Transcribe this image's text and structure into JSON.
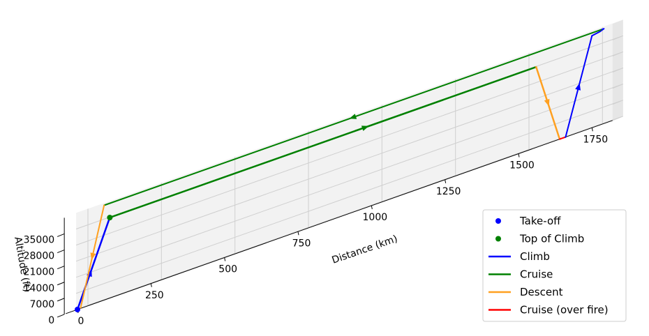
{
  "chart_data": {
    "type": "line",
    "projection": "3d",
    "title": "",
    "xlabel": "Distance (km)",
    "ylabel": "",
    "zlabel": "Altitude (ft)",
    "xticks": [
      {
        "value": 0,
        "label": "0"
      },
      {
        "value": 250,
        "label": "250"
      },
      {
        "value": 500,
        "label": "500"
      },
      {
        "value": 750,
        "label": "750"
      },
      {
        "value": 1000,
        "label": "1000"
      },
      {
        "value": 1250,
        "label": "1250"
      },
      {
        "value": 1500,
        "label": "1500"
      },
      {
        "value": 1750,
        "label": "1750"
      }
    ],
    "zticks": [
      {
        "value": 0,
        "label": "0"
      },
      {
        "value": 7000,
        "label": "7000"
      },
      {
        "value": 14000,
        "label": "14000"
      },
      {
        "value": 21000,
        "label": "21000"
      },
      {
        "value": 28000,
        "label": "28000"
      },
      {
        "value": 35000,
        "label": "35000"
      }
    ],
    "xlim": [
      -40,
      1820
    ],
    "zlim": [
      0,
      42000
    ],
    "grid": true,
    "legend_position": "bottom-right",
    "legend": [
      {
        "label": "Take-off",
        "kind": "marker",
        "color": "#0000ff"
      },
      {
        "label": "Top of Climb",
        "kind": "marker",
        "color": "#008000"
      },
      {
        "label": "Climb",
        "kind": "line",
        "color": "#0000ff"
      },
      {
        "label": "Cruise",
        "kind": "line",
        "color": "#008000"
      },
      {
        "label": "Descent",
        "kind": "line",
        "color": "#ffa020"
      },
      {
        "label": "Cruise (over fire)",
        "kind": "line",
        "color": "#ff0000"
      }
    ],
    "segments": [
      {
        "series": "Climb",
        "color": "#0000ff",
        "width": 2.5,
        "points": [
          [
            0,
            0,
            0
          ],
          [
            110,
            0,
            35000
          ]
        ],
        "arrow_at": 0.4
      },
      {
        "series": "Cruise",
        "color": "#008000",
        "width": 2.5,
        "points": [
          [
            110,
            0,
            35000
          ],
          [
            1560,
            0,
            35000
          ]
        ],
        "arrow_at": 0.6
      },
      {
        "series": "Descent",
        "color": "#ffa020",
        "width": 2.5,
        "points": [
          [
            1560,
            0,
            35000
          ],
          [
            1640,
            0,
            0
          ]
        ],
        "arrow_at": 0.5
      },
      {
        "series": "Cruise (over fire)",
        "color": "#ff0000",
        "width": 2,
        "points": [
          [
            1640,
            0,
            0
          ],
          [
            1660,
            0,
            0
          ]
        ]
      },
      {
        "series": "Climb",
        "color": "#0000ff",
        "width": 2,
        "points": [
          [
            1660,
            0,
            0
          ],
          [
            1750,
            0,
            40000
          ]
        ],
        "arrow_at": 0.5
      },
      {
        "series": "Climb",
        "color": "#0000ff",
        "width": 2,
        "points": [
          [
            1750,
            0,
            40000
          ],
          [
            1760,
            0.5,
            40500
          ],
          [
            1755,
            1,
            41000
          ],
          [
            1745,
            1,
            41000
          ]
        ]
      },
      {
        "series": "Cruise",
        "color": "#008000",
        "width": 2,
        "points": [
          [
            1745,
            1,
            41000
          ],
          [
            55,
            1,
            41000
          ]
        ],
        "arrow_at": 0.5
      },
      {
        "series": "Descent",
        "color": "#ffa020",
        "width": 2,
        "points": [
          [
            55,
            1,
            41000
          ],
          [
            -25,
            1,
            0
          ]
        ],
        "arrow_at": 0.5
      }
    ],
    "markers": [
      {
        "series": "Take-off",
        "color": "#0000ff",
        "point": [
          0,
          0,
          0
        ]
      },
      {
        "series": "Top of Climb",
        "color": "#008000",
        "point": [
          110,
          0,
          35000
        ]
      }
    ]
  }
}
